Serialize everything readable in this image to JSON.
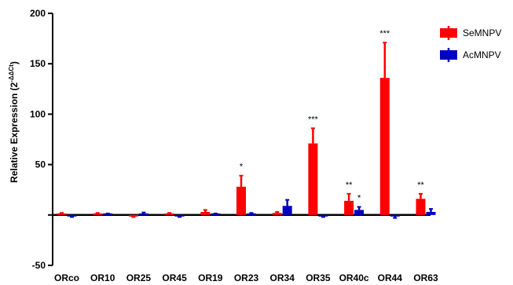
{
  "chart_data": {
    "type": "bar",
    "ylabel_main": "Relative Expression (2",
    "ylabel_exp": "-ΔΔCt",
    "ylabel_tail": ")",
    "ylim": [
      -50,
      200
    ],
    "yticks": [
      -50,
      50,
      100,
      150,
      200
    ],
    "categories": [
      "ORco",
      "OR10",
      "OR25",
      "OR45",
      "OR19",
      "OR23",
      "OR34",
      "OR35",
      "OR40c",
      "OR44",
      "OR63"
    ],
    "series": [
      {
        "name": "SeMNPV",
        "color": "#ff0000",
        "values": [
          1,
          1,
          -1,
          1,
          3,
          28,
          2,
          71,
          14,
          136,
          16
        ],
        "errors": [
          1,
          1,
          1,
          1,
          2,
          11,
          1,
          15,
          7,
          35,
          5
        ]
      },
      {
        "name": "AcMNPV",
        "color": "#0000c0",
        "values": [
          -1,
          0.5,
          1,
          -1,
          0.5,
          1,
          9,
          -1,
          5,
          -1,
          3
        ],
        "errors": [
          1,
          1,
          1.5,
          1,
          1,
          1,
          6,
          1,
          3,
          2,
          3
        ]
      }
    ],
    "significance": [
      {
        "category": "OR23",
        "series": "SeMNPV",
        "text": "*"
      },
      {
        "category": "OR35",
        "series": "SeMNPV",
        "text": "***"
      },
      {
        "category": "OR40c",
        "series": "SeMNPV",
        "text": "**"
      },
      {
        "category": "OR40c",
        "series": "AcMNPV",
        "text": "*"
      },
      {
        "category": "OR44",
        "series": "SeMNPV",
        "text": "***"
      },
      {
        "category": "OR63",
        "series": "SeMNPV",
        "text": "**"
      }
    ],
    "legend_position": "top-right",
    "grid": false
  }
}
